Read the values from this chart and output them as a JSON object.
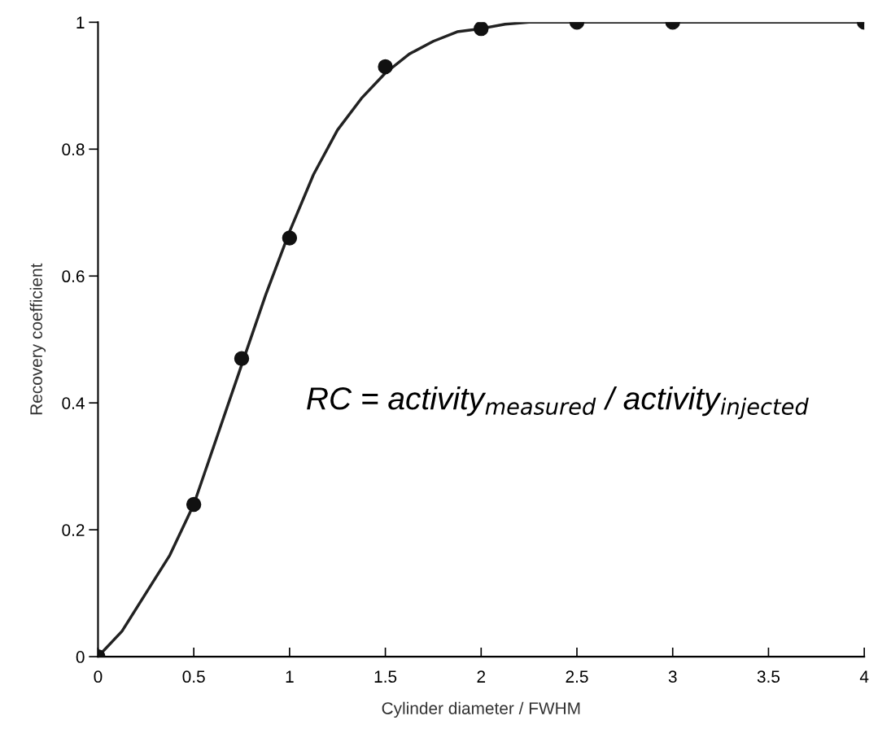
{
  "chart_data": {
    "type": "scatter",
    "xlabel": "Cylinder diameter / FWHM",
    "ylabel": "Recovery coefficient",
    "x": [
      0,
      0.5,
      0.75,
      1,
      1.5,
      2,
      2.5,
      3,
      4
    ],
    "series": [
      {
        "color": "#111111",
        "values": [
          0,
          0.24,
          0.47,
          0.66,
          0.93,
          0.99,
          1.0,
          1.0,
          1.0
        ],
        "marker": "circle"
      },
      {
        "type": "line",
        "color": "#222222",
        "x": [
          0,
          0.125,
          0.25,
          0.375,
          0.5,
          0.625,
          0.75,
          0.875,
          1.0,
          1.125,
          1.25,
          1.375,
          1.5,
          1.625,
          1.75,
          1.875,
          2.0,
          2.125,
          2.25,
          2.5,
          3,
          3.5,
          4
        ],
        "values": [
          0,
          0.04,
          0.1,
          0.16,
          0.24,
          0.35,
          0.46,
          0.57,
          0.67,
          0.76,
          0.83,
          0.88,
          0.92,
          0.95,
          0.97,
          0.985,
          0.99,
          0.997,
          1.0,
          1.0,
          1.0,
          1.0,
          1.0
        ],
        "marker": "none",
        "line_style": "solid"
      }
    ],
    "xlim": [
      0,
      4
    ],
    "ylim": [
      0,
      1
    ],
    "xticks": [
      0,
      0.5,
      1,
      1.5,
      2,
      2.5,
      3,
      3.5,
      4
    ],
    "yticks": [
      0,
      0.2,
      0.4,
      0.6,
      0.8,
      1
    ],
    "grid": false,
    "legend": false,
    "annotations": [
      {
        "text": "RC = activity$_{measured}$ / activity$_{injected}$"
      }
    ]
  }
}
